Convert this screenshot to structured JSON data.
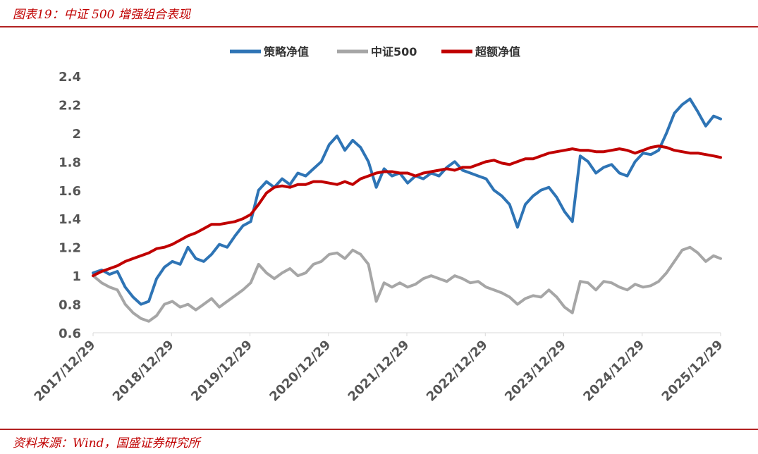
{
  "header": {
    "title": "图表19：中证 500 增强组合表现"
  },
  "footer": {
    "source": "资料来源：Wind，国盛证券研究所"
  },
  "chart_data": {
    "type": "line",
    "title": "",
    "xlabel": "",
    "ylabel": "",
    "ylim": [
      0.6,
      2.4
    ],
    "yticks": [
      "2.4",
      "2.2",
      "2",
      "1.8",
      "1.6",
      "1.4",
      "1.2",
      "1",
      "0.8",
      "0.6"
    ],
    "xlim": [
      2017.99,
      2025.99
    ],
    "xticks": [
      "2017/12/29",
      "2018/12/29",
      "2019/12/29",
      "2020/12/29",
      "2021/12/29",
      "2022/12/29",
      "2023/12/29",
      "2024/12/29",
      "2025/12/29"
    ],
    "legend": {
      "position": "top-center"
    },
    "series": [
      {
        "name": "策略净值",
        "color": "#2e74b5",
        "x": [
          2017.99,
          2018.1,
          2018.2,
          2018.3,
          2018.4,
          2018.5,
          2018.6,
          2018.7,
          2018.8,
          2018.9,
          2019.0,
          2019.1,
          2019.2,
          2019.3,
          2019.4,
          2019.5,
          2019.6,
          2019.7,
          2019.8,
          2019.9,
          2020.0,
          2020.1,
          2020.2,
          2020.3,
          2020.4,
          2020.5,
          2020.6,
          2020.7,
          2020.8,
          2020.9,
          2021.0,
          2021.1,
          2021.2,
          2021.3,
          2021.4,
          2021.5,
          2021.6,
          2021.7,
          2021.8,
          2021.9,
          2022.0,
          2022.1,
          2022.2,
          2022.3,
          2022.4,
          2022.5,
          2022.6,
          2022.7,
          2022.8,
          2022.9,
          2023.0,
          2023.1,
          2023.2,
          2023.3,
          2023.4,
          2023.5,
          2023.6,
          2023.7,
          2023.8,
          2023.9,
          2024.0,
          2024.1,
          2024.2,
          2024.3,
          2024.4,
          2024.5,
          2024.6,
          2024.7,
          2024.8,
          2024.9,
          2025.0,
          2025.1,
          2025.2,
          2025.3,
          2025.4,
          2025.5,
          2025.6,
          2025.7,
          2025.8,
          2025.9,
          2025.99
        ],
        "values": [
          1.02,
          1.04,
          1.01,
          1.03,
          0.92,
          0.85,
          0.8,
          0.82,
          0.98,
          1.06,
          1.1,
          1.08,
          1.2,
          1.12,
          1.1,
          1.15,
          1.22,
          1.2,
          1.28,
          1.35,
          1.38,
          1.6,
          1.66,
          1.62,
          1.68,
          1.64,
          1.72,
          1.7,
          1.75,
          1.8,
          1.92,
          1.98,
          1.88,
          1.95,
          1.9,
          1.8,
          1.62,
          1.75,
          1.7,
          1.72,
          1.65,
          1.7,
          1.68,
          1.72,
          1.7,
          1.76,
          1.8,
          1.74,
          1.72,
          1.7,
          1.68,
          1.6,
          1.56,
          1.5,
          1.34,
          1.5,
          1.56,
          1.6,
          1.62,
          1.55,
          1.45,
          1.38,
          1.84,
          1.8,
          1.72,
          1.76,
          1.78,
          1.72,
          1.7,
          1.8,
          1.86,
          1.85,
          1.88,
          2.0,
          2.14,
          2.2,
          2.24,
          2.15,
          2.05,
          2.12,
          2.1
        ]
      },
      {
        "name": "中证500",
        "color": "#a6a6a6",
        "x": [
          2017.99,
          2018.1,
          2018.2,
          2018.3,
          2018.4,
          2018.5,
          2018.6,
          2018.7,
          2018.8,
          2018.9,
          2019.0,
          2019.1,
          2019.2,
          2019.3,
          2019.4,
          2019.5,
          2019.6,
          2019.7,
          2019.8,
          2019.9,
          2020.0,
          2020.1,
          2020.2,
          2020.3,
          2020.4,
          2020.5,
          2020.6,
          2020.7,
          2020.8,
          2020.9,
          2021.0,
          2021.1,
          2021.2,
          2021.3,
          2021.4,
          2021.5,
          2021.6,
          2021.7,
          2021.8,
          2021.9,
          2022.0,
          2022.1,
          2022.2,
          2022.3,
          2022.4,
          2022.5,
          2022.6,
          2022.7,
          2022.8,
          2022.9,
          2023.0,
          2023.1,
          2023.2,
          2023.3,
          2023.4,
          2023.5,
          2023.6,
          2023.7,
          2023.8,
          2023.9,
          2024.0,
          2024.1,
          2024.2,
          2024.3,
          2024.4,
          2024.5,
          2024.6,
          2024.7,
          2024.8,
          2024.9,
          2025.0,
          2025.1,
          2025.2,
          2025.3,
          2025.4,
          2025.5,
          2025.6,
          2025.7,
          2025.8,
          2025.9,
          2025.99
        ],
        "values": [
          1.0,
          0.95,
          0.92,
          0.9,
          0.8,
          0.74,
          0.7,
          0.68,
          0.72,
          0.8,
          0.82,
          0.78,
          0.8,
          0.76,
          0.8,
          0.84,
          0.78,
          0.82,
          0.86,
          0.9,
          0.95,
          1.08,
          1.02,
          0.98,
          1.02,
          1.05,
          1.0,
          1.02,
          1.08,
          1.1,
          1.15,
          1.16,
          1.12,
          1.18,
          1.15,
          1.08,
          0.82,
          0.95,
          0.92,
          0.95,
          0.92,
          0.94,
          0.98,
          1.0,
          0.98,
          0.96,
          1.0,
          0.98,
          0.95,
          0.96,
          0.92,
          0.9,
          0.88,
          0.85,
          0.8,
          0.84,
          0.86,
          0.85,
          0.9,
          0.85,
          0.78,
          0.74,
          0.96,
          0.95,
          0.9,
          0.96,
          0.95,
          0.92,
          0.9,
          0.94,
          0.92,
          0.93,
          0.96,
          1.02,
          1.1,
          1.18,
          1.2,
          1.16,
          1.1,
          1.14,
          1.12
        ]
      },
      {
        "name": "超额净值",
        "color": "#c00000",
        "x": [
          2017.99,
          2018.1,
          2018.2,
          2018.3,
          2018.4,
          2018.5,
          2018.6,
          2018.7,
          2018.8,
          2018.9,
          2019.0,
          2019.1,
          2019.2,
          2019.3,
          2019.4,
          2019.5,
          2019.6,
          2019.7,
          2019.8,
          2019.9,
          2020.0,
          2020.1,
          2020.2,
          2020.3,
          2020.4,
          2020.5,
          2020.6,
          2020.7,
          2020.8,
          2020.9,
          2021.0,
          2021.1,
          2021.2,
          2021.3,
          2021.4,
          2021.5,
          2021.6,
          2021.7,
          2021.8,
          2021.9,
          2022.0,
          2022.1,
          2022.2,
          2022.3,
          2022.4,
          2022.5,
          2022.6,
          2022.7,
          2022.8,
          2022.9,
          2023.0,
          2023.1,
          2023.2,
          2023.3,
          2023.4,
          2023.5,
          2023.6,
          2023.7,
          2023.8,
          2023.9,
          2024.0,
          2024.1,
          2024.2,
          2024.3,
          2024.4,
          2024.5,
          2024.6,
          2024.7,
          2024.8,
          2024.9,
          2025.0,
          2025.1,
          2025.2,
          2025.3,
          2025.4,
          2025.5,
          2025.6,
          2025.7,
          2025.8,
          2025.9,
          2025.99
        ],
        "values": [
          1.0,
          1.03,
          1.05,
          1.07,
          1.1,
          1.12,
          1.14,
          1.16,
          1.19,
          1.2,
          1.22,
          1.25,
          1.28,
          1.3,
          1.33,
          1.36,
          1.36,
          1.37,
          1.38,
          1.4,
          1.43,
          1.5,
          1.58,
          1.62,
          1.63,
          1.62,
          1.64,
          1.64,
          1.66,
          1.66,
          1.65,
          1.64,
          1.66,
          1.64,
          1.68,
          1.7,
          1.72,
          1.73,
          1.73,
          1.72,
          1.72,
          1.7,
          1.72,
          1.73,
          1.74,
          1.75,
          1.74,
          1.76,
          1.76,
          1.78,
          1.8,
          1.81,
          1.79,
          1.78,
          1.8,
          1.82,
          1.82,
          1.84,
          1.86,
          1.87,
          1.88,
          1.89,
          1.88,
          1.88,
          1.87,
          1.87,
          1.88,
          1.89,
          1.88,
          1.86,
          1.88,
          1.9,
          1.91,
          1.9,
          1.88,
          1.87,
          1.86,
          1.86,
          1.85,
          1.84,
          1.83
        ]
      }
    ]
  }
}
